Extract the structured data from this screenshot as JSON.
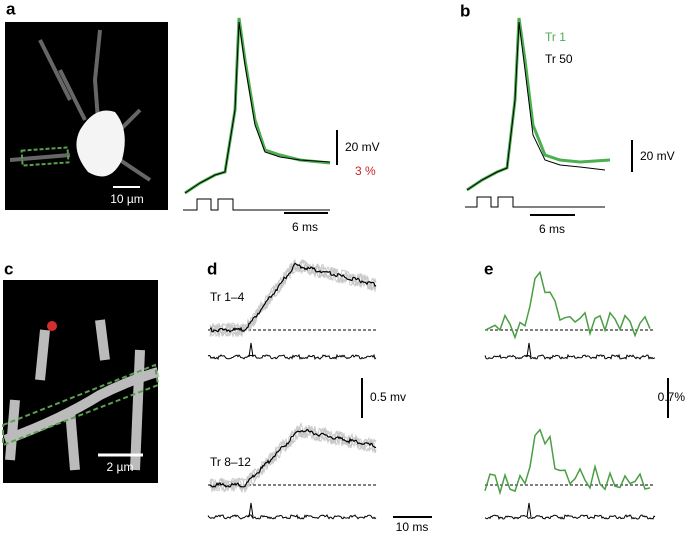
{
  "panel_a": {
    "label": "a",
    "image_scale": "10 µm",
    "voltage_scale": "20 mV",
    "fluorescence_scale": "3 %",
    "time_scale": "6 ms"
  },
  "panel_b": {
    "label": "b",
    "legend": [
      "Tr 1",
      "Tr 50"
    ],
    "voltage_scale": "20 mV",
    "time_scale": "6 ms"
  },
  "panel_c": {
    "label": "c",
    "image_scale": "2 µm"
  },
  "panel_d": {
    "label": "d",
    "trace_labels": [
      "Tr 1–4",
      "Tr 8–12"
    ],
    "voltage_scale": "0.5 mv",
    "time_scale": "10 ms"
  },
  "panel_e": {
    "label": "e",
    "fluorescence_scale": "0.7%"
  }
}
